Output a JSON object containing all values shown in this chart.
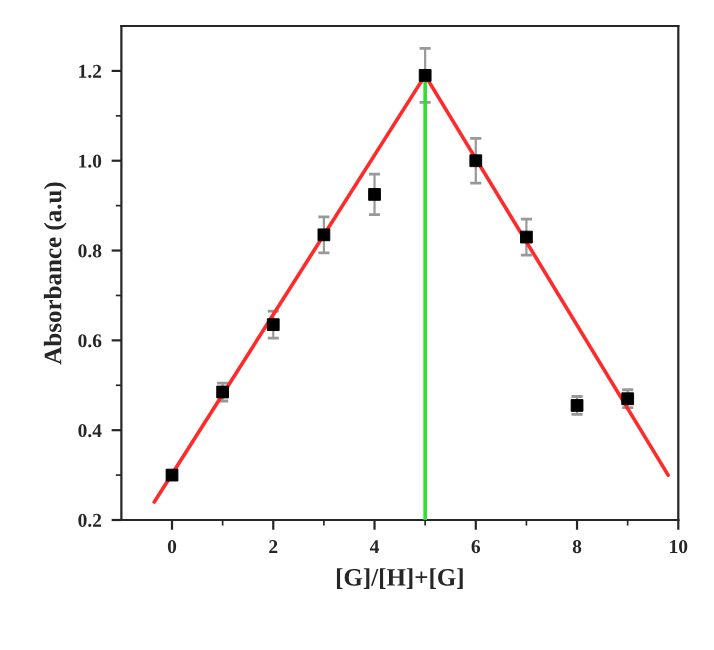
{
  "chart_data": {
    "type": "scatter",
    "xlabel": "[G]/[H]+[G]",
    "ylabel": "Absorbance (a.u)",
    "xlim": [
      -1,
      10
    ],
    "ylim": [
      0.2,
      1.3
    ],
    "xticks": [
      0,
      2,
      4,
      6,
      8,
      10
    ],
    "yticks": [
      0.2,
      0.4,
      0.6,
      0.8,
      {
        "value": 1.0,
        "label": "1.0"
      },
      1.2
    ],
    "grid": false,
    "marker": "square",
    "series": [
      {
        "color": "#000000",
        "x": [
          0,
          1,
          2,
          3,
          4,
          5,
          6,
          7,
          8,
          9
        ],
        "values": [
          0.3,
          0.485,
          0.635,
          0.835,
          0.925,
          1.19,
          1.0,
          0.83,
          0.455,
          0.47
        ],
        "errors": [
          0.01,
          0.02,
          0.03,
          0.04,
          0.045,
          0.06,
          0.05,
          0.04,
          0.02,
          0.02
        ]
      },
      {
        "type": "line",
        "color": "#ff2a2a",
        "x": [
          -0.35,
          5,
          9.8
        ],
        "values": [
          0.24,
          1.19,
          0.3
        ],
        "marker": "none"
      },
      {
        "type": "line",
        "color": "#33dd33",
        "x": [
          5,
          5
        ],
        "values": [
          0.2,
          1.19
        ],
        "marker": "none"
      }
    ]
  }
}
